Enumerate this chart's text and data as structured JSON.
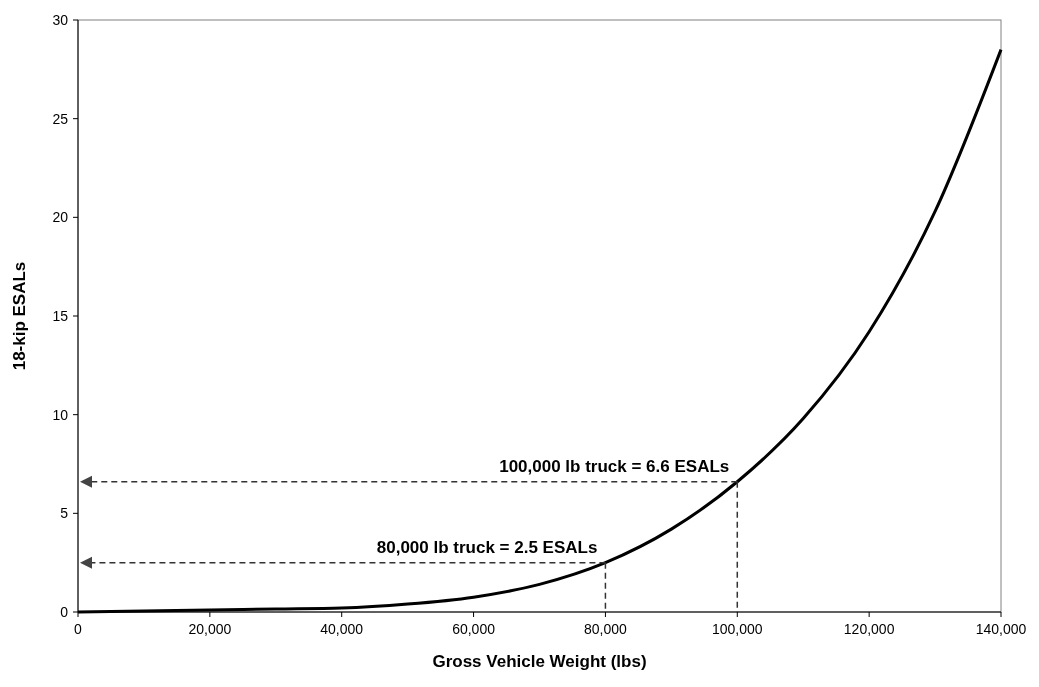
{
  "chart_data": {
    "type": "line",
    "xlabel": "Gross Vehicle Weight (lbs)",
    "ylabel": "18-kip ESALs",
    "x": [
      0,
      10000,
      20000,
      30000,
      40000,
      50000,
      60000,
      70000,
      80000,
      90000,
      100000,
      110000,
      120000,
      130000,
      140000
    ],
    "series": [
      {
        "color": "#000000",
        "values": [
          0,
          0.05,
          0.1,
          0.15,
          0.2,
          0.4,
          0.75,
          1.4,
          2.5,
          4.2,
          6.6,
          9.8,
          14.2,
          20.3,
          28.5
        ]
      }
    ],
    "xlim": [
      0,
      140000
    ],
    "xticks": [
      {
        "value": 0,
        "label": "0"
      },
      {
        "value": 20000,
        "label": "20,000"
      },
      {
        "value": 40000,
        "label": "40,000"
      },
      {
        "value": 60000,
        "label": "60,000"
      },
      {
        "value": 80000,
        "label": "80,000"
      },
      {
        "value": 100000,
        "label": "100,000"
      },
      {
        "value": 120000,
        "label": "120,000"
      },
      {
        "value": 140000,
        "label": "140,000"
      }
    ],
    "ylim": [
      0,
      30
    ],
    "yticks": [
      0,
      5,
      10,
      15,
      20,
      25,
      30
    ],
    "annotations": [
      {
        "text": "100,000 lb truck = 6.6 ESALs",
        "x": 100000,
        "y": 6.6
      },
      {
        "text": "80,000 lb truck = 2.5 ESALs",
        "x": 80000,
        "y": 2.5
      }
    ],
    "grid": false,
    "marker": "none",
    "line_style": "solid"
  }
}
